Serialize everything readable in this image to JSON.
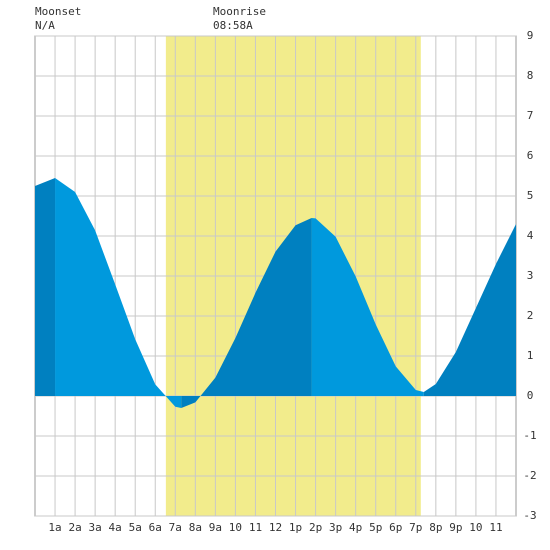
{
  "chart_data": {
    "type": "tide",
    "moonset_label": "Moonset",
    "moonset": "N/A",
    "moonrise_label": "Moonrise",
    "moonrise": "08:58A",
    "daylight": [
      6.53,
      19.25
    ],
    "daylight_color": "#f2ec8c",
    "rising_color": "#0080c0",
    "falling_color": "#0099dd",
    "x": [
      0,
      1,
      2,
      3,
      4,
      5,
      6,
      7,
      7.3,
      8,
      9,
      10,
      11,
      12,
      13,
      13.8,
      14,
      15,
      16,
      17,
      18,
      19,
      19.4,
      20,
      21,
      22,
      23,
      24
    ],
    "values": [
      5.25,
      5.45,
      5.1,
      4.14,
      2.79,
      1.42,
      0.29,
      -0.27,
      -0.3,
      -0.16,
      0.46,
      1.45,
      2.58,
      3.61,
      4.27,
      4.45,
      4.44,
      3.98,
      2.99,
      1.79,
      0.74,
      0.15,
      0.1,
      0.3,
      1.1,
      2.2,
      3.3,
      4.3
    ],
    "xlim": [
      0,
      24
    ],
    "ylim": [
      -3,
      9
    ],
    "xticks": [
      {
        "value": 1,
        "label": "1a"
      },
      {
        "value": 2,
        "label": "2a"
      },
      {
        "value": 3,
        "label": "3a"
      },
      {
        "value": 4,
        "label": "4a"
      },
      {
        "value": 5,
        "label": "5a"
      },
      {
        "value": 6,
        "label": "6a"
      },
      {
        "value": 7,
        "label": "7a"
      },
      {
        "value": 8,
        "label": "8a"
      },
      {
        "value": 9,
        "label": "9a"
      },
      {
        "value": 10,
        "label": "10"
      },
      {
        "value": 11,
        "label": "11"
      },
      {
        "value": 12,
        "label": "12"
      },
      {
        "value": 13,
        "label": "1p"
      },
      {
        "value": 14,
        "label": "2p"
      },
      {
        "value": 15,
        "label": "3p"
      },
      {
        "value": 16,
        "label": "4p"
      },
      {
        "value": 17,
        "label": "5p"
      },
      {
        "value": 18,
        "label": "6p"
      },
      {
        "value": 19,
        "label": "7p"
      },
      {
        "value": 20,
        "label": "8p"
      },
      {
        "value": 21,
        "label": "9p"
      },
      {
        "value": 22,
        "label": "10"
      },
      {
        "value": 23,
        "label": "11"
      }
    ],
    "yticks": [
      -3,
      -2,
      -1,
      0,
      1,
      2,
      3,
      4,
      5,
      6,
      7,
      8,
      9
    ],
    "grid": true
  }
}
